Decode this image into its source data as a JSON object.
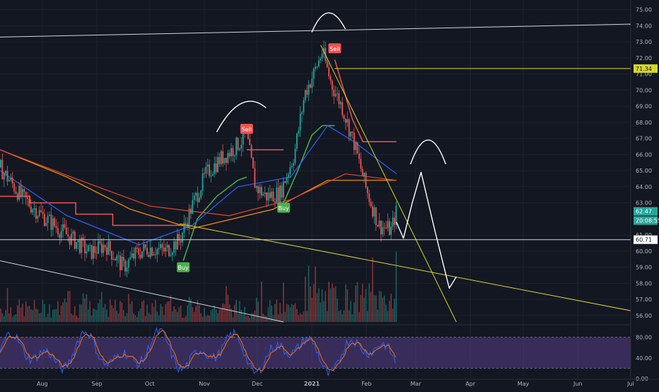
{
  "chart_data": {
    "type": "candlestick",
    "price_axis": {
      "ticks": [
        "75.00",
        "74.00",
        "73.00",
        "72.00",
        "71.00",
        "70.00",
        "69.00",
        "68.00",
        "67.00",
        "66.00",
        "65.00",
        "64.00",
        "63.00",
        "61.00",
        "60.00",
        "59.00",
        "58.00",
        "57.00",
        "56.00"
      ],
      "range": [
        55.6,
        75.6
      ]
    },
    "time_axis": {
      "labels": [
        "Aug",
        "Sep",
        "Oct",
        "Nov",
        "Dec",
        "2021",
        "Feb",
        "Mar",
        "Apr",
        "May",
        "Jun",
        "Jul"
      ],
      "label_dates": [
        "2020-08-01",
        "2020-09-01",
        "2020-10-01",
        "2020-11-01",
        "2020-12-01",
        "2021-01-01",
        "2021-02-01",
        "2021-03-01",
        "2021-04-01",
        "2021-05-01",
        "2021-06-01",
        "2021-07-01"
      ],
      "start": "2020-07-08",
      "end": "2021-07-01"
    },
    "price_badges": {
      "resistance": "71.34",
      "last": "62.47",
      "countdown": "20:08:55",
      "support": "60.71"
    },
    "signals": [
      {
        "label": "Buy",
        "date": "2020-10-20",
        "price": 59.0,
        "kind": "buy"
      },
      {
        "label": "Sell",
        "date": "2020-11-25",
        "price": 67.6,
        "kind": "sell"
      },
      {
        "label": "Buy",
        "date": "2020-12-16",
        "price": 62.7,
        "kind": "buy"
      },
      {
        "label": "Sell",
        "date": "2021-01-14",
        "price": 72.6,
        "kind": "sell"
      }
    ],
    "price_path": [
      [
        "2020-07-08",
        65.2
      ],
      [
        "2020-07-20",
        63.4
      ],
      [
        "2020-08-01",
        62.2
      ],
      [
        "2020-08-15",
        61.0
      ],
      [
        "2020-08-28",
        59.9
      ],
      [
        "2020-09-06",
        60.4
      ],
      [
        "2020-09-16",
        59.0
      ],
      [
        "2020-09-24",
        59.9
      ],
      [
        "2020-10-01",
        60.2
      ],
      [
        "2020-10-10",
        60.0
      ],
      [
        "2020-10-18",
        60.7
      ],
      [
        "2020-10-25",
        62.8
      ],
      [
        "2020-11-02",
        64.8
      ],
      [
        "2020-11-10",
        65.7
      ],
      [
        "2020-11-18",
        66.4
      ],
      [
        "2020-11-25",
        67.2
      ],
      [
        "2020-11-30",
        64.0
      ],
      [
        "2020-12-06",
        63.4
      ],
      [
        "2020-12-14",
        63.6
      ],
      [
        "2020-12-22",
        66.0
      ],
      [
        "2020-12-28",
        69.8
      ],
      [
        "2021-01-02",
        71.0
      ],
      [
        "2021-01-07",
        72.4
      ],
      [
        "2021-01-12",
        70.4
      ],
      [
        "2021-01-18",
        69.0
      ],
      [
        "2021-01-25",
        66.7
      ],
      [
        "2021-02-01",
        63.8
      ],
      [
        "2021-02-08",
        61.6
      ],
      [
        "2021-02-15",
        61.3
      ],
      [
        "2021-02-18",
        62.47
      ]
    ],
    "projection_path": [
      [
        "2021-02-18",
        61.8
      ],
      [
        "2021-02-22",
        60.8
      ],
      [
        "2021-02-27",
        63.0
      ],
      [
        "2021-03-04",
        64.9
      ],
      [
        "2021-03-12",
        61.2
      ],
      [
        "2021-03-20",
        57.7
      ],
      [
        "2021-03-24",
        58.4
      ]
    ],
    "moving_averages": [
      {
        "color": "#ff9800",
        "points": [
          [
            "2020-07-08",
            66.3
          ],
          [
            "2020-08-15",
            64.6
          ],
          [
            "2020-09-20",
            62.6
          ],
          [
            "2020-10-25",
            61.4
          ],
          [
            "2020-12-10",
            62.6
          ],
          [
            "2021-01-10",
            64.4
          ],
          [
            "2021-02-18",
            64.4
          ]
        ]
      },
      {
        "color": "#e5462b",
        "points": [
          [
            "2020-07-08",
            66.3
          ],
          [
            "2020-08-20",
            64.5
          ],
          [
            "2020-10-01",
            62.8
          ],
          [
            "2020-11-15",
            62.2
          ],
          [
            "2020-12-20",
            63.2
          ],
          [
            "2021-01-20",
            64.8
          ],
          [
            "2021-02-18",
            64.4
          ]
        ]
      },
      {
        "color": "#2962ff",
        "points": [
          [
            "2020-07-08",
            65.0
          ],
          [
            "2020-08-15",
            62.2
          ],
          [
            "2020-09-25",
            60.4
          ],
          [
            "2020-10-25",
            61.6
          ],
          [
            "2020-11-20",
            64.0
          ],
          [
            "2020-12-20",
            64.6
          ],
          [
            "2021-01-10",
            67.8
          ],
          [
            "2021-01-25",
            66.8
          ],
          [
            "2021-02-18",
            64.8
          ]
        ]
      }
    ],
    "trendlines": [
      {
        "color": "#d1d4dc",
        "from": [
          "2020-07-08",
          73.3
        ],
        "to": [
          "2021-07-01",
          74.1
        ]
      },
      {
        "color": "#d1d4dc",
        "from": [
          "2020-07-08",
          59.4
        ],
        "to": [
          "2020-12-16",
          55.6
        ]
      },
      {
        "color": "#d6d62a",
        "from": [
          "2020-10-18",
          61.7
        ],
        "to": [
          "2021-07-01",
          56.3
        ]
      },
      {
        "color": "#d6d62a",
        "from": [
          "2021-01-06",
          72.8
        ],
        "to": [
          "2021-03-24",
          55.6
        ]
      },
      {
        "color": "#d6d62a",
        "from": [
          "2021-01-14",
          71.34
        ],
        "to": [
          "2021-07-01",
          71.34
        ]
      },
      {
        "color": "#d1d4dc",
        "from": [
          "2020-07-08",
          60.71
        ],
        "to": [
          "2021-07-01",
          60.71
        ]
      }
    ],
    "oscillator": {
      "ticks": [
        "80.00",
        "40.00",
        "0.00"
      ],
      "range": [
        0,
        100
      ],
      "band": [
        20,
        80
      ]
    }
  }
}
